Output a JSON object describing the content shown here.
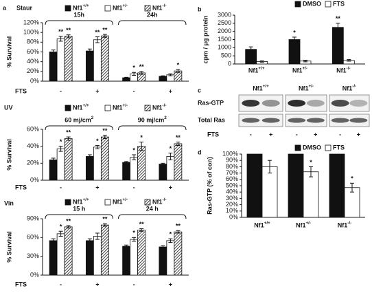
{
  "chart_data": [
    {
      "type": "bar",
      "panel": "a",
      "title": "Staur",
      "categories": [
        "-",
        "+",
        "-",
        "+"
      ],
      "x_label": "FTS",
      "group_labels": [
        "15h",
        "24h"
      ],
      "y_label": "% Survival",
      "ylim": [
        0,
        120
      ],
      "yticks": [
        {
          "value": 0,
          "label": "0%"
        },
        {
          "value": 20,
          "label": "20%"
        },
        {
          "value": 40,
          "label": "40%"
        },
        {
          "value": 60,
          "label": "60%"
        },
        {
          "value": 80,
          "label": "80%"
        },
        {
          "value": 100,
          "label": "100%"
        },
        {
          "value": 120,
          "label": "120%"
        }
      ],
      "series": [
        {
          "name": "Nf1+/+",
          "color": "#111111",
          "values": [
            60,
            62,
            7,
            10
          ],
          "errors": [
            4,
            4,
            1,
            1
          ],
          "stars": [
            null,
            null,
            null,
            null
          ]
        },
        {
          "name": "Nf1+/-",
          "color": "#ffffff",
          "values": [
            87,
            85,
            15,
            13
          ],
          "errors": [
            5,
            6,
            3,
            2
          ],
          "stars": [
            "**",
            "**",
            "*",
            null
          ]
        },
        {
          "name": "Nf1-/-",
          "color": "#ffffff",
          "hatch": true,
          "values": [
            92,
            93,
            17,
            21
          ],
          "errors": [
            3,
            3,
            3,
            3
          ],
          "stars": [
            "**",
            "**",
            "**",
            "*"
          ]
        }
      ]
    },
    {
      "type": "bar",
      "title": "UV",
      "categories": [
        "-",
        "+",
        "-",
        "+"
      ],
      "x_label": "FTS",
      "group_labels": [
        "60 mj/cm2",
        "90 mj/cm2"
      ],
      "y_label": "% Survival",
      "ylim": [
        0,
        60
      ],
      "yticks": [
        {
          "value": 0,
          "label": "0%"
        },
        {
          "value": 20,
          "label": "20%"
        },
        {
          "value": 40,
          "label": "40%"
        },
        {
          "value": 60,
          "label": "60%"
        }
      ],
      "series": [
        {
          "name": "Nf1+/+",
          "color": "#111111",
          "values": [
            24,
            28,
            21,
            19
          ],
          "errors": [
            2,
            2,
            1,
            1
          ],
          "stars": [
            null,
            null,
            null,
            null
          ]
        },
        {
          "name": "Nf1+/-",
          "color": "#ffffff",
          "values": [
            37,
            39,
            27,
            28
          ],
          "errors": [
            3,
            2,
            3,
            4
          ],
          "stars": [
            "*",
            "*",
            "*",
            "*"
          ]
        },
        {
          "name": "Nf1-/-",
          "color": "#ffffff",
          "hatch": true,
          "values": [
            49,
            51,
            40,
            43
          ],
          "errors": [
            2,
            2,
            5,
            2
          ],
          "stars": [
            "**",
            "**",
            "*",
            "**"
          ]
        }
      ]
    },
    {
      "type": "bar",
      "title": "Vin",
      "categories": [
        "-",
        "+",
        "-",
        "+"
      ],
      "x_label": "FTS",
      "group_labels": [
        "15 h",
        "24 h"
      ],
      "y_label": "% Survival",
      "ylim": [
        0,
        90
      ],
      "yticks": [
        {
          "value": 0,
          "label": "0%"
        },
        {
          "value": 30,
          "label": "30%"
        },
        {
          "value": 60,
          "label": "60%"
        },
        {
          "value": 90,
          "label": "90%"
        }
      ],
      "series": [
        {
          "name": "Nf1+/+",
          "color": "#111111",
          "values": [
            55,
            55,
            46,
            45
          ],
          "errors": [
            3,
            3,
            2,
            2
          ],
          "stars": [
            null,
            null,
            null,
            null
          ]
        },
        {
          "name": "Nf1+/-",
          "color": "#ffffff",
          "values": [
            66,
            62,
            57,
            55
          ],
          "errors": [
            4,
            5,
            3,
            3
          ],
          "stars": [
            "*",
            null,
            "*",
            "*"
          ]
        },
        {
          "name": "Nf1-/-",
          "color": "#ffffff",
          "hatch": true,
          "values": [
            77,
            80,
            72,
            69
          ],
          "errors": [
            2,
            2,
            2,
            2
          ],
          "stars": [
            "**",
            "**",
            "**",
            "**"
          ]
        }
      ]
    },
    {
      "type": "bar",
      "panel": "b",
      "categories": [
        "Nf1+/+",
        "Nf1+/-",
        "Nf1-/-"
      ],
      "y_label": "cpm / μg protein",
      "ylim": [
        0,
        3000
      ],
      "yticks": [
        0,
        500,
        1000,
        1500,
        2000,
        2500,
        3000
      ],
      "series": [
        {
          "name": "DMSO",
          "color": "#111111",
          "values": [
            900,
            1500,
            2250
          ],
          "errors": [
            150,
            150,
            250
          ],
          "stars": [
            null,
            "*",
            "**"
          ]
        },
        {
          "name": "FTS",
          "color": "#ffffff",
          "values": [
            150,
            180,
            220
          ],
          "errors": [
            40,
            50,
            50
          ],
          "stars": [
            null,
            null,
            null
          ]
        }
      ]
    },
    {
      "type": "bar",
      "panel": "d",
      "categories": [
        "Nf1+/+",
        "Nf1+/-",
        "Nf1-/-"
      ],
      "y_label": "Ras-GTP (% of con)",
      "ylim": [
        0,
        100
      ],
      "yticks": [
        {
          "value": 0,
          "label": "0%"
        },
        {
          "value": 10,
          "label": "10%"
        },
        {
          "value": 20,
          "label": "20%"
        },
        {
          "value": 30,
          "label": "30%"
        },
        {
          "value": 40,
          "label": "40%"
        },
        {
          "value": 50,
          "label": "50%"
        },
        {
          "value": 60,
          "label": "60%"
        },
        {
          "value": 70,
          "label": "70%"
        },
        {
          "value": 80,
          "label": "80%"
        },
        {
          "value": 90,
          "label": "90%"
        },
        {
          "value": 100,
          "label": "100%"
        }
      ],
      "series": [
        {
          "name": "DMSO",
          "color": "#111111",
          "values": [
            100,
            100,
            100
          ],
          "errors": [
            0,
            0,
            0
          ],
          "stars": [
            null,
            null,
            null
          ]
        },
        {
          "name": "FTS",
          "color": "#ffffff",
          "values": [
            80,
            72,
            47
          ],
          "errors": [
            10,
            8,
            7
          ],
          "stars": [
            null,
            "*",
            "*"
          ]
        }
      ]
    }
  ],
  "blot": {
    "panel": "c",
    "genotypes": [
      "Nf1+/+",
      "Nf1+/-",
      "Nf1-/-"
    ],
    "rows": [
      "Ras-GTP",
      "Total Ras"
    ],
    "x_label": "FTS",
    "treatments": [
      "-",
      "+",
      "-",
      "+",
      "-",
      "+"
    ]
  }
}
